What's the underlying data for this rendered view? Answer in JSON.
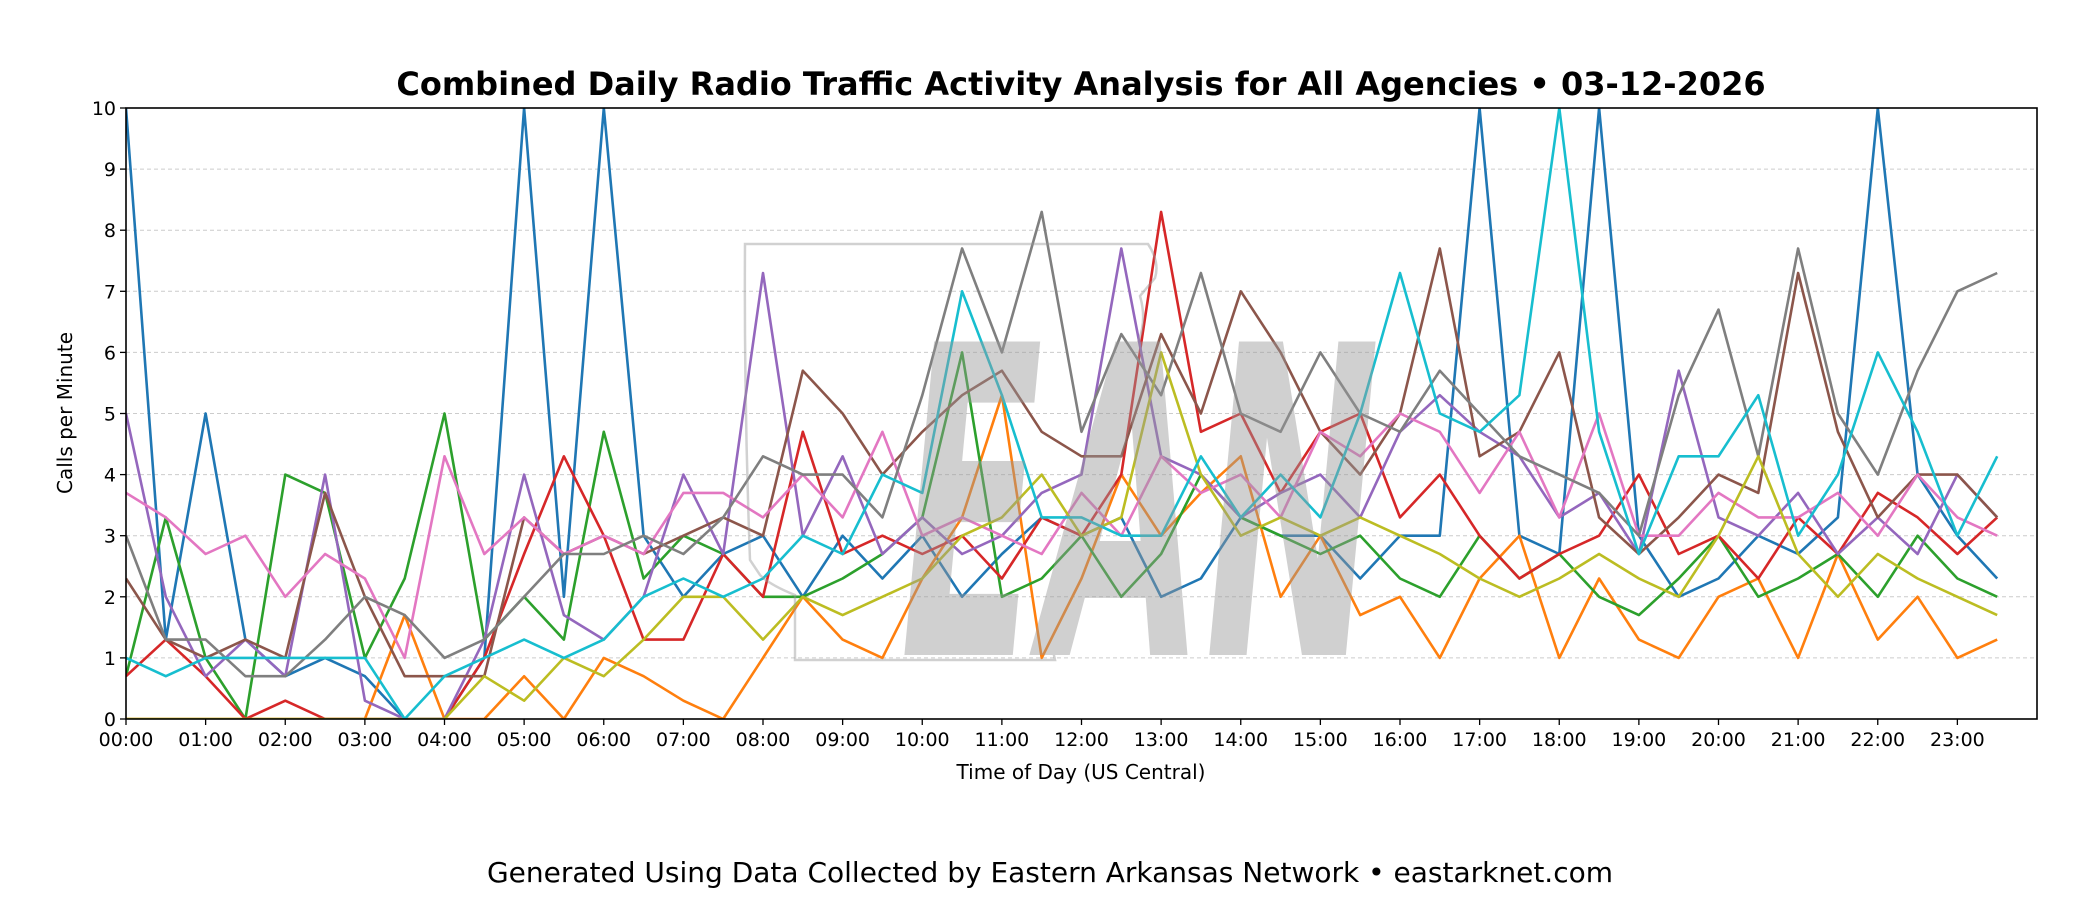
{
  "chart_data": {
    "type": "line",
    "title": "Combined Daily Radio Traffic Activity Analysis for All Agencies • 03-12-2026",
    "xlabel": "Time of Day (US Central)",
    "ylabel": "Calls per Minute",
    "footer": "Generated Using Data Collected by Eastern Arkansas Network • eastarknet.com",
    "watermark_text": "EAN",
    "xlim_hours": [
      0,
      24
    ],
    "ylim": [
      0,
      10
    ],
    "grid": "horizontal dashed",
    "legend": "none",
    "x_tick_labels": [
      "00:00",
      "01:00",
      "02:00",
      "03:00",
      "04:00",
      "05:00",
      "06:00",
      "07:00",
      "08:00",
      "09:00",
      "10:00",
      "11:00",
      "12:00",
      "13:00",
      "14:00",
      "15:00",
      "16:00",
      "17:00",
      "18:00",
      "19:00",
      "20:00",
      "21:00",
      "22:00",
      "23:00"
    ],
    "y_tick_labels": [
      "0",
      "1",
      "2",
      "3",
      "4",
      "5",
      "6",
      "7",
      "8",
      "9",
      "10"
    ],
    "x_step_hours": 0.5,
    "series": [
      {
        "color": "#1f77b4",
        "values": [
          10,
          1.3,
          5,
          1.3,
          0.7,
          1,
          0.7,
          0,
          0,
          1,
          10,
          2,
          10,
          3,
          2,
          2.7,
          3,
          2,
          3,
          2.3,
          3,
          2,
          2.7,
          3.3,
          3,
          3.3,
          2,
          2.3,
          3.3,
          3,
          3,
          2.3,
          3,
          3,
          10,
          3,
          2.7,
          10,
          3,
          2,
          2.3,
          3,
          2.7,
          3.3,
          10,
          4,
          3,
          2.3
        ]
      },
      {
        "color": "#ff7f0e",
        "values": [
          0,
          0,
          0,
          0,
          0,
          0,
          0,
          1.7,
          0,
          0,
          0.7,
          0,
          1,
          0.7,
          0.3,
          0,
          1,
          2,
          1.3,
          1,
          2.3,
          3.3,
          5.3,
          1,
          2.3,
          4,
          3,
          3.7,
          4.3,
          2,
          3,
          1.7,
          2,
          1,
          2.3,
          3,
          1,
          2.3,
          1.3,
          1,
          2,
          2.3,
          1,
          2.7,
          1.3,
          2,
          1,
          1.3
        ]
      },
      {
        "color": "#2ca02c",
        "values": [
          0.7,
          3.3,
          1,
          0,
          4,
          3.7,
          1,
          2.3,
          5,
          1.3,
          2,
          1.3,
          4.7,
          2.3,
          3,
          2.7,
          2,
          2,
          2.3,
          2.7,
          3.3,
          6,
          2,
          2.3,
          3,
          2,
          2.7,
          4,
          3.3,
          3,
          2.7,
          3,
          2.3,
          2,
          3,
          2.3,
          2.7,
          2,
          1.7,
          2.3,
          3,
          2,
          2.3,
          2.7,
          2,
          3,
          2.3,
          2
        ]
      },
      {
        "color": "#d62728",
        "values": [
          0.7,
          1.3,
          0.7,
          0,
          0.3,
          0,
          0,
          0,
          0,
          1,
          2.7,
          4.3,
          3,
          1.3,
          1.3,
          2.7,
          2,
          4.7,
          2.7,
          3,
          2.7,
          3,
          2.3,
          3.3,
          3,
          4,
          8.3,
          4.7,
          5,
          3.7,
          4.7,
          5,
          3.3,
          4,
          3,
          2.3,
          2.7,
          3,
          4,
          2.7,
          3,
          2.3,
          3.3,
          2.7,
          3.7,
          3.3,
          2.7,
          3.3
        ]
      },
      {
        "color": "#9467bd",
        "values": [
          5,
          2,
          0.7,
          1.3,
          0.7,
          4,
          0.3,
          0,
          0,
          1.3,
          4,
          1.7,
          1.3,
          2,
          4,
          2.7,
          7.3,
          3,
          4.3,
          2.7,
          3.3,
          2.7,
          3,
          3.7,
          4,
          7.7,
          4.3,
          4,
          3.3,
          3.7,
          4,
          3.3,
          4.7,
          5.3,
          4.7,
          4.3,
          3.3,
          3.7,
          2.7,
          5.7,
          3.3,
          3,
          3.7,
          2.7,
          3.3,
          2.7,
          4,
          3.3
        ]
      },
      {
        "color": "#8c564b",
        "values": [
          2.3,
          1.3,
          1,
          1.3,
          1,
          3.7,
          2,
          0.7,
          0.7,
          0.7,
          3.3,
          2.7,
          3,
          2.7,
          3,
          3.3,
          3,
          5.7,
          5,
          4,
          4.7,
          5.3,
          5.7,
          4.7,
          4.3,
          4.3,
          6.3,
          5,
          7,
          6,
          4.7,
          4,
          5,
          7.7,
          4.3,
          4.7,
          6,
          3.3,
          2.7,
          3.3,
          4,
          3.7,
          7.3,
          4.7,
          3.3,
          4,
          4,
          3.3
        ]
      },
      {
        "color": "#e377c2",
        "values": [
          3.7,
          3.3,
          2.7,
          3,
          2,
          2.7,
          2.3,
          1,
          4.3,
          2.7,
          3.3,
          2.7,
          3,
          2.7,
          3.7,
          3.7,
          3.3,
          4,
          3.3,
          4.7,
          3,
          3.3,
          3,
          2.7,
          3.7,
          3,
          4.3,
          3.7,
          4,
          3.3,
          4.7,
          4.3,
          5,
          4.7,
          3.7,
          4.7,
          3.3,
          5,
          3,
          3,
          3.7,
          3.3,
          3.3,
          3.7,
          3,
          4,
          3.3,
          3
        ]
      },
      {
        "color": "#7f7f7f",
        "values": [
          3,
          1.3,
          1.3,
          0.7,
          0.7,
          1.3,
          2,
          1.7,
          1,
          1.3,
          2,
          2.7,
          2.7,
          3,
          2.7,
          3.3,
          4.3,
          4,
          4,
          3.3,
          5.3,
          7.7,
          6,
          8.3,
          4.7,
          6.3,
          5.3,
          7.3,
          5,
          4.7,
          6,
          5,
          4.7,
          5.7,
          5,
          4.3,
          4,
          3.7,
          3,
          5.3,
          6.7,
          4.3,
          7.7,
          5,
          4,
          5.7,
          7,
          7.3
        ]
      },
      {
        "color": "#bcbd22",
        "values": [
          0,
          0,
          0,
          0,
          0,
          0,
          0,
          0,
          0,
          0.7,
          0.3,
          1,
          0.7,
          1.3,
          2,
          2,
          1.3,
          2,
          1.7,
          2,
          2.3,
          3,
          3.3,
          4,
          3,
          3.3,
          6,
          4,
          3,
          3.3,
          3,
          3.3,
          3,
          2.7,
          2.3,
          2,
          2.3,
          2.7,
          2.3,
          2,
          3,
          4.3,
          2.7,
          2,
          2.7,
          2.3,
          2,
          1.7
        ]
      },
      {
        "color": "#17becf",
        "values": [
          1,
          0.7,
          1,
          1,
          1,
          1,
          1,
          0,
          0.7,
          1,
          1.3,
          1,
          1.3,
          2,
          2.3,
          2,
          2.3,
          3,
          2.7,
          4,
          3.7,
          7,
          5.3,
          3.3,
          3.3,
          3,
          3,
          4.3,
          3.3,
          4,
          3.3,
          5,
          7.3,
          5,
          4.7,
          5.3,
          10,
          4.7,
          2.7,
          4.3,
          4.3,
          5.3,
          3,
          4,
          6,
          4.7,
          3,
          4.3
        ]
      }
    ]
  }
}
